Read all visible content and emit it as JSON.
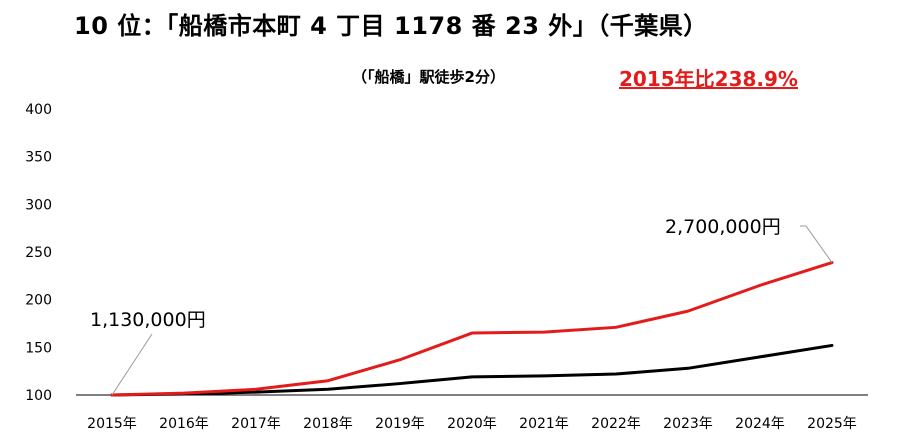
{
  "chart_data": {
    "type": "line",
    "title": "10 位：「船橋市本町 4 丁目 1178 番 23 外」（千葉県）",
    "subtitle": "（「船橋」駅徒歩2分）",
    "note": "2015年比238.9%",
    "categories": [
      "2015年",
      "2016年",
      "2017年",
      "2018年",
      "2019年",
      "2020年",
      "2021年",
      "2022年",
      "2023年",
      "2024年",
      "2025年"
    ],
    "series": [
      {
        "color": "#e31b1b",
        "values": [
          100,
          102,
          106,
          115,
          137,
          165,
          166,
          171,
          188,
          215,
          238.9
        ]
      },
      {
        "color": "#000000",
        "values": [
          100,
          101,
          103,
          106,
          112,
          119,
          120,
          122,
          128,
          140,
          152
        ]
      }
    ],
    "yticks": [
      100,
      150,
      200,
      250,
      300,
      350,
      400
    ],
    "ylim": [
      100,
      400
    ],
    "annotations": [
      {
        "text": "1,130,000円",
        "series": 0,
        "point": 0
      },
      {
        "text": "2,700,000円",
        "series": 0,
        "point": 10
      }
    ],
    "grid": false,
    "legend": "none"
  }
}
